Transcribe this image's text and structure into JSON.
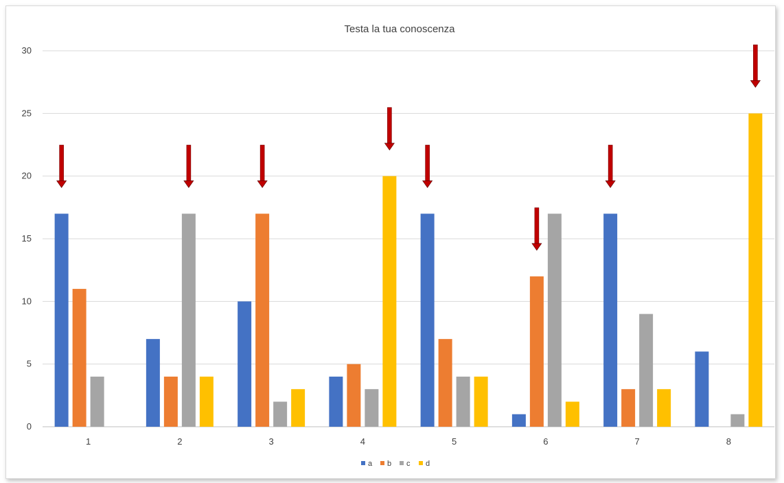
{
  "chart_data": {
    "type": "bar",
    "title": "Testa la tua conoscenza",
    "xlabel": "",
    "ylabel": "",
    "categories": [
      "1",
      "2",
      "3",
      "4",
      "5",
      "6",
      "7",
      "8"
    ],
    "ylim": [
      0,
      30
    ],
    "yticks": [
      0,
      5,
      10,
      15,
      20,
      25,
      30
    ],
    "grid": true,
    "legend_position": "bottom",
    "series": [
      {
        "name": "a",
        "color": "#4472C4",
        "values": [
          17,
          7,
          10,
          4,
          17,
          1,
          17,
          6
        ]
      },
      {
        "name": "b",
        "color": "#ED7D31",
        "values": [
          11,
          4,
          17,
          5,
          7,
          12,
          3,
          0
        ]
      },
      {
        "name": "c",
        "color": "#A5A5A5",
        "values": [
          4,
          17,
          2,
          3,
          4,
          17,
          9,
          1
        ]
      },
      {
        "name": "d",
        "color": "#FFC000",
        "values": [
          0,
          4,
          3,
          20,
          4,
          2,
          3,
          25
        ]
      }
    ],
    "annotations": {
      "type": "arrow",
      "color": "#C00000",
      "marks_series": [
        "a",
        "c",
        "b",
        "d",
        "a",
        "b",
        "a",
        "d"
      ]
    }
  }
}
